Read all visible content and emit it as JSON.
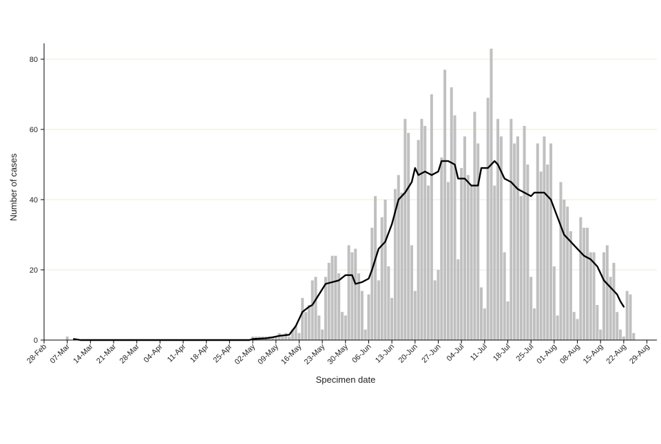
{
  "chart_data": {
    "type": "bar",
    "title": "",
    "xlabel": "Specimen date",
    "ylabel": "Number of cases",
    "ylim": [
      0,
      84
    ],
    "y_ticks": [
      0,
      20,
      40,
      60,
      80
    ],
    "x_start_date": "2020-02-28",
    "x_end_date": "2020-08-31",
    "x_tick_labels": [
      "28-Feb",
      "07-Mar",
      "14-Mar",
      "21-Mar",
      "28-Mar",
      "04-Apr",
      "11-Apr",
      "18-Apr",
      "25-Apr",
      "02-May",
      "09-May",
      "16-May",
      "23-May",
      "30-May",
      "06-Jun",
      "13-Jun",
      "20-Jun",
      "27-Jun",
      "04-Jul",
      "11-Jul",
      "18-Jul",
      "25-Jul",
      "01-Aug",
      "08-Aug",
      "15-Aug",
      "22-Aug",
      "29-Aug"
    ],
    "grid": "horizontal",
    "colors": {
      "bars": "#c0c0c0",
      "line": "#000000",
      "grid": "#e6ecd8",
      "axis": "#000000"
    },
    "series": [
      {
        "type": "bar",
        "points": [
          [
            "2020-03-06",
            1
          ],
          [
            "2020-05-01",
            1
          ],
          [
            "2020-05-02",
            1
          ],
          [
            "2020-05-03",
            1
          ],
          [
            "2020-05-04",
            1
          ],
          [
            "2020-05-05",
            1
          ],
          [
            "2020-05-06",
            1
          ],
          [
            "2020-05-07",
            1
          ],
          [
            "2020-05-08",
            1
          ],
          [
            "2020-05-09",
            2
          ],
          [
            "2020-05-10",
            1
          ],
          [
            "2020-05-11",
            2
          ],
          [
            "2020-05-12",
            1
          ],
          [
            "2020-05-13",
            3
          ],
          [
            "2020-05-14",
            4
          ],
          [
            "2020-05-15",
            2
          ],
          [
            "2020-05-16",
            12
          ],
          [
            "2020-05-17",
            8
          ],
          [
            "2020-05-18",
            10
          ],
          [
            "2020-05-19",
            17
          ],
          [
            "2020-05-20",
            18
          ],
          [
            "2020-05-21",
            7
          ],
          [
            "2020-05-22",
            3
          ],
          [
            "2020-05-23",
            18
          ],
          [
            "2020-05-24",
            22
          ],
          [
            "2020-05-25",
            24
          ],
          [
            "2020-05-26",
            24
          ],
          [
            "2020-05-27",
            19
          ],
          [
            "2020-05-28",
            8
          ],
          [
            "2020-05-29",
            7
          ],
          [
            "2020-05-30",
            27
          ],
          [
            "2020-05-31",
            25
          ],
          [
            "2020-06-01",
            26
          ],
          [
            "2020-06-02",
            19
          ],
          [
            "2020-06-03",
            14
          ],
          [
            "2020-06-04",
            3
          ],
          [
            "2020-06-05",
            13
          ],
          [
            "2020-06-06",
            32
          ],
          [
            "2020-06-07",
            41
          ],
          [
            "2020-06-08",
            17
          ],
          [
            "2020-06-09",
            35
          ],
          [
            "2020-06-10",
            40
          ],
          [
            "2020-06-11",
            21
          ],
          [
            "2020-06-12",
            12
          ],
          [
            "2020-06-13",
            43
          ],
          [
            "2020-06-14",
            47
          ],
          [
            "2020-06-15",
            42
          ],
          [
            "2020-06-16",
            63
          ],
          [
            "2020-06-17",
            59
          ],
          [
            "2020-06-18",
            27
          ],
          [
            "2020-06-19",
            14
          ],
          [
            "2020-06-20",
            57
          ],
          [
            "2020-06-21",
            63
          ],
          [
            "2020-06-22",
            61
          ],
          [
            "2020-06-23",
            44
          ],
          [
            "2020-06-24",
            70
          ],
          [
            "2020-06-25",
            17
          ],
          [
            "2020-06-26",
            20
          ],
          [
            "2020-06-27",
            52
          ],
          [
            "2020-06-28",
            77
          ],
          [
            "2020-06-29",
            45
          ],
          [
            "2020-06-30",
            72
          ],
          [
            "2020-07-01",
            64
          ],
          [
            "2020-07-02",
            23
          ],
          [
            "2020-07-03",
            49
          ],
          [
            "2020-07-04",
            58
          ],
          [
            "2020-07-05",
            47
          ],
          [
            "2020-07-06",
            44
          ],
          [
            "2020-07-07",
            65
          ],
          [
            "2020-07-08",
            56
          ],
          [
            "2020-07-09",
            15
          ],
          [
            "2020-07-10",
            9
          ],
          [
            "2020-07-11",
            69
          ],
          [
            "2020-07-12",
            83
          ],
          [
            "2020-07-13",
            44
          ],
          [
            "2020-07-14",
            63
          ],
          [
            "2020-07-15",
            58
          ],
          [
            "2020-07-16",
            25
          ],
          [
            "2020-07-17",
            11
          ],
          [
            "2020-07-18",
            63
          ],
          [
            "2020-07-19",
            56
          ],
          [
            "2020-07-20",
            58
          ],
          [
            "2020-07-21",
            41
          ],
          [
            "2020-07-22",
            61
          ],
          [
            "2020-07-23",
            50
          ],
          [
            "2020-07-24",
            18
          ],
          [
            "2020-07-25",
            9
          ],
          [
            "2020-07-26",
            56
          ],
          [
            "2020-07-27",
            48
          ],
          [
            "2020-07-28",
            58
          ],
          [
            "2020-07-29",
            50
          ],
          [
            "2020-07-30",
            56
          ],
          [
            "2020-07-31",
            21
          ],
          [
            "2020-08-01",
            7
          ],
          [
            "2020-08-02",
            45
          ],
          [
            "2020-08-03",
            40
          ],
          [
            "2020-08-04",
            38
          ],
          [
            "2020-08-05",
            31
          ],
          [
            "2020-08-06",
            8
          ],
          [
            "2020-08-07",
            6
          ],
          [
            "2020-08-08",
            35
          ],
          [
            "2020-08-09",
            32
          ],
          [
            "2020-08-10",
            32
          ],
          [
            "2020-08-11",
            25
          ],
          [
            "2020-08-12",
            25
          ],
          [
            "2020-08-13",
            10
          ],
          [
            "2020-08-14",
            3
          ],
          [
            "2020-08-15",
            25
          ],
          [
            "2020-08-16",
            27
          ],
          [
            "2020-08-17",
            18
          ],
          [
            "2020-08-18",
            22
          ],
          [
            "2020-08-19",
            8
          ],
          [
            "2020-08-20",
            3
          ],
          [
            "2020-08-21",
            1
          ],
          [
            "2020-08-22",
            14
          ],
          [
            "2020-08-23",
            13
          ],
          [
            "2020-08-24",
            2
          ]
        ]
      },
      {
        "type": "line",
        "points": [
          [
            "2020-03-08",
            0.3
          ],
          [
            "2020-03-10",
            0
          ],
          [
            "2020-04-30",
            0
          ],
          [
            "2020-05-01",
            0.3
          ],
          [
            "2020-05-05",
            0.5
          ],
          [
            "2020-05-07",
            0.8
          ],
          [
            "2020-05-09",
            1.2
          ],
          [
            "2020-05-12",
            1.5
          ],
          [
            "2020-05-14",
            4
          ],
          [
            "2020-05-16",
            8
          ],
          [
            "2020-05-18",
            9.5
          ],
          [
            "2020-05-19",
            10
          ],
          [
            "2020-05-21",
            13
          ],
          [
            "2020-05-23",
            16
          ],
          [
            "2020-05-25",
            16.5
          ],
          [
            "2020-05-27",
            17
          ],
          [
            "2020-05-29",
            18.5
          ],
          [
            "2020-05-31",
            18.5
          ],
          [
            "2020-06-01",
            16
          ],
          [
            "2020-06-03",
            16.5
          ],
          [
            "2020-06-05",
            17.5
          ],
          [
            "2020-06-06",
            20
          ],
          [
            "2020-06-08",
            26
          ],
          [
            "2020-06-10",
            28
          ],
          [
            "2020-06-12",
            33
          ],
          [
            "2020-06-14",
            40
          ],
          [
            "2020-06-16",
            42
          ],
          [
            "2020-06-18",
            45
          ],
          [
            "2020-06-19",
            49
          ],
          [
            "2020-06-20",
            47
          ],
          [
            "2020-06-22",
            48
          ],
          [
            "2020-06-24",
            47
          ],
          [
            "2020-06-26",
            48
          ],
          [
            "2020-06-27",
            51
          ],
          [
            "2020-06-29",
            51
          ],
          [
            "2020-07-01",
            50
          ],
          [
            "2020-07-02",
            46
          ],
          [
            "2020-07-04",
            46
          ],
          [
            "2020-07-06",
            44
          ],
          [
            "2020-07-08",
            44
          ],
          [
            "2020-07-09",
            49
          ],
          [
            "2020-07-11",
            49
          ],
          [
            "2020-07-13",
            51
          ],
          [
            "2020-07-14",
            50
          ],
          [
            "2020-07-16",
            46
          ],
          [
            "2020-07-18",
            45
          ],
          [
            "2020-07-20",
            43
          ],
          [
            "2020-07-22",
            42
          ],
          [
            "2020-07-24",
            41
          ],
          [
            "2020-07-25",
            42
          ],
          [
            "2020-07-28",
            42
          ],
          [
            "2020-07-30",
            40
          ],
          [
            "2020-08-01",
            35
          ],
          [
            "2020-08-03",
            30
          ],
          [
            "2020-08-05",
            28
          ],
          [
            "2020-08-07",
            26
          ],
          [
            "2020-08-09",
            24
          ],
          [
            "2020-08-11",
            23
          ],
          [
            "2020-08-13",
            21
          ],
          [
            "2020-08-15",
            17
          ],
          [
            "2020-08-17",
            15
          ],
          [
            "2020-08-19",
            13
          ],
          [
            "2020-08-20",
            11
          ],
          [
            "2020-08-21",
            9.5
          ]
        ]
      }
    ]
  }
}
